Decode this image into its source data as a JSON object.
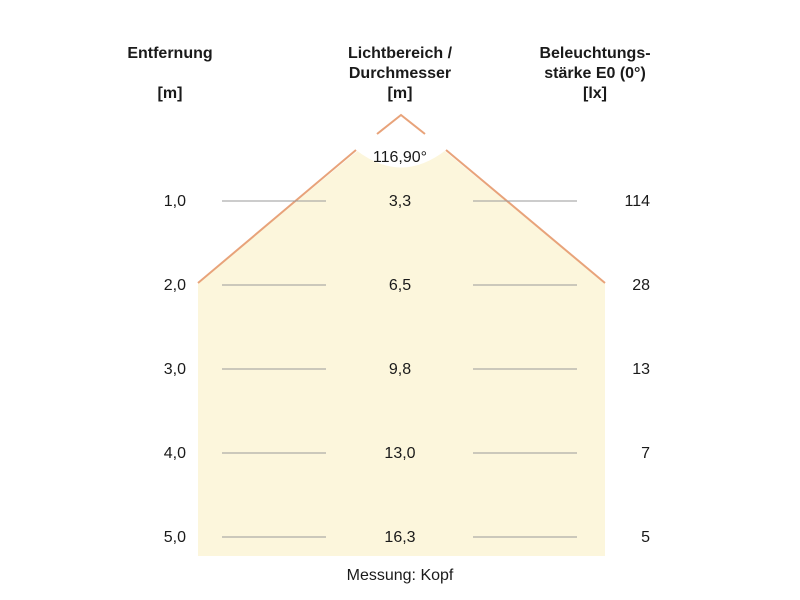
{
  "headers": {
    "distance": {
      "line1": "Entfernung",
      "unit": "[m]"
    },
    "diameter": {
      "line1": "Lichtbereich /",
      "line2": "Durchmesser",
      "unit": "[m]"
    },
    "illuminance": {
      "line1": "Beleuchtungs-",
      "line2": "stärke E0 (0°)",
      "unit": "[lx]"
    }
  },
  "beam_angle": "116,90°",
  "rows": [
    {
      "distance": "1,0",
      "diameter": "3,3",
      "illuminance": "114"
    },
    {
      "distance": "2,0",
      "diameter": "6,5",
      "illuminance": "28"
    },
    {
      "distance": "3,0",
      "diameter": "9,8",
      "illuminance": "13"
    },
    {
      "distance": "4,0",
      "diameter": "13,0",
      "illuminance": "7"
    },
    {
      "distance": "5,0",
      "diameter": "16,3",
      "illuminance": "5"
    }
  ],
  "footer": "Messung: Kopf",
  "colors": {
    "beam_fill": "#fcf6dc",
    "beam_edge": "#e8a37a",
    "grid_line": "#9a9a9a",
    "text": "#1a1a1a"
  }
}
